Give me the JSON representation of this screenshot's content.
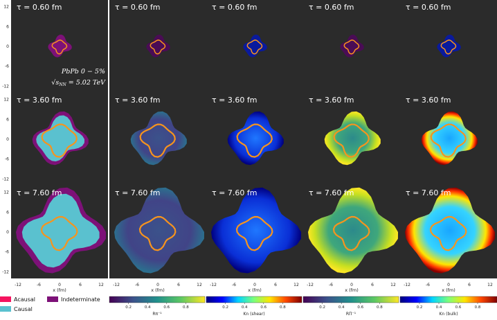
{
  "chart_data": {
    "type": "heatmap",
    "title": "",
    "xlabel": "x (fm)",
    "ylabel": "",
    "xlim": [
      -14,
      14
    ],
    "ylim": [
      -14,
      14
    ],
    "x_ticks": [
      -12,
      -6,
      0,
      6,
      12
    ],
    "y_ticks": [
      12,
      6,
      0,
      -6,
      -12
    ],
    "rows": [
      {
        "tau_label": "τ = 0.60 fm",
        "scale": 0.33
      },
      {
        "tau_label": "τ = 3.60 fm",
        "scale": 0.78
      },
      {
        "tau_label": "τ = 7.60 fm",
        "scale": 1.25
      }
    ],
    "columns": [
      {
        "quantity": "causality",
        "colorbar_label": ""
      },
      {
        "quantity": "R_pi_inverse",
        "colorbar_label": "Rπ⁻¹"
      },
      {
        "quantity": "Kn_shear",
        "colorbar_label": "Kn (shear)"
      },
      {
        "quantity": "R_Pi_inverse",
        "colorbar_label": "RΠ⁻¹"
      },
      {
        "quantity": "Kn_bulk",
        "colorbar_label": "Kn (bulk)"
      }
    ],
    "annotation": {
      "system": "PbPb  0 − 5%",
      "energy_sqrt": "√s",
      "energy_sub": "NN",
      "energy_value": "= 5.02 TeV"
    },
    "legend": [
      {
        "label": "Acausal",
        "color": "#f5145f"
      },
      {
        "label": "Causal",
        "color": "#5ac1cf"
      },
      {
        "label": "Indeterminate",
        "color": "#7d1178"
      }
    ],
    "colorbar_ticks": [
      0.2,
      0.4,
      0.6,
      0.8
    ],
    "colormaps": {
      "viridis": [
        "#440154",
        "#3b528b",
        "#21908c",
        "#5dc863",
        "#fde725"
      ],
      "jet": [
        "#00007f",
        "#0000ff",
        "#00d4ff",
        "#7dff7a",
        "#ffe600",
        "#ff4800",
        "#7f0000"
      ]
    },
    "colors": {
      "panel_bg": "#2b2b2b",
      "contour": "#f7941d",
      "causal": "#5ac1cf",
      "indeterminate": "#7d1178"
    }
  }
}
